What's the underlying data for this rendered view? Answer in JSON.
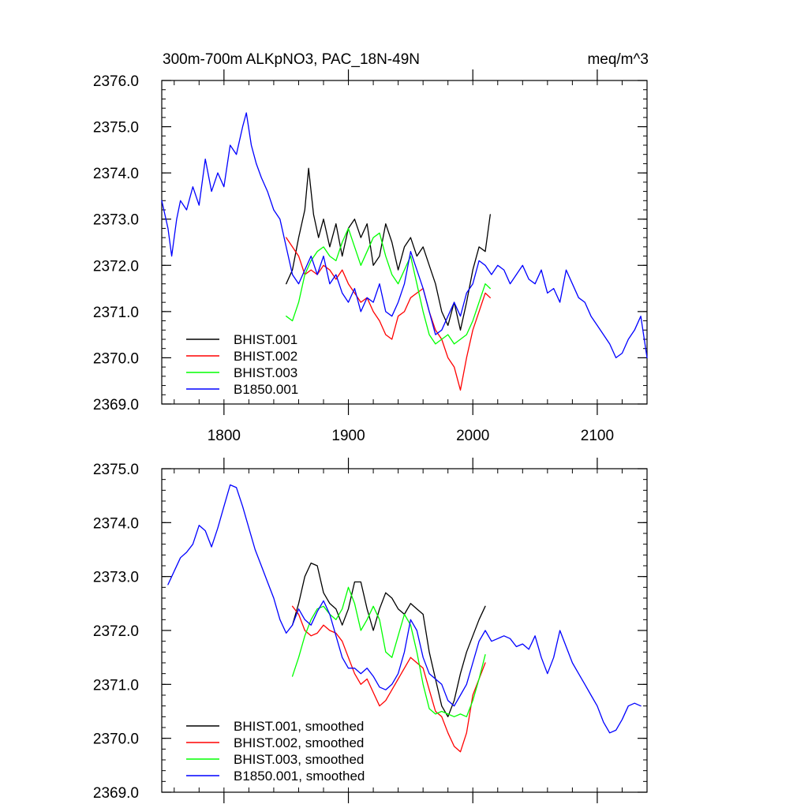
{
  "chart_data": [
    {
      "type": "line",
      "title_left": "300m-700m ALKpNO3, PAC_18N-49N",
      "title_right": "meq/m^3",
      "xlim": [
        1750,
        2140
      ],
      "ylim": [
        2369.0,
        2376.0
      ],
      "xticks": [
        1800,
        1900,
        2000,
        2100
      ],
      "xticklabels": [
        "1800",
        "1900",
        "2000",
        "2100"
      ],
      "yticks": [
        2369.0,
        2370.0,
        2371.0,
        2372.0,
        2373.0,
        2374.0,
        2375.0,
        2376.0
      ],
      "yticklabels": [
        "2369.0",
        "2370.0",
        "2371.0",
        "2372.0",
        "2373.0",
        "2374.0",
        "2375.0",
        "2376.0"
      ],
      "legend_position": "bottom-left",
      "series": [
        {
          "name": "BHIST.001",
          "color": "#000000",
          "x": [
            1850,
            1855,
            1860,
            1865,
            1868,
            1872,
            1876,
            1880,
            1885,
            1890,
            1895,
            1900,
            1905,
            1910,
            1915,
            1920,
            1925,
            1930,
            1935,
            1940,
            1945,
            1950,
            1955,
            1960,
            1965,
            1970,
            1975,
            1980,
            1985,
            1990,
            1995,
            2000,
            2005,
            2010,
            2014
          ],
          "y": [
            2371.6,
            2371.9,
            2372.6,
            2373.2,
            2374.1,
            2373.1,
            2372.6,
            2373.0,
            2372.4,
            2372.9,
            2372.2,
            2372.8,
            2373.0,
            2372.6,
            2372.9,
            2372.0,
            2372.2,
            2372.9,
            2372.5,
            2371.9,
            2372.4,
            2372.6,
            2372.2,
            2372.4,
            2372.0,
            2371.6,
            2371.0,
            2370.7,
            2371.2,
            2370.6,
            2371.2,
            2371.9,
            2372.4,
            2372.3,
            2373.1
          ]
        },
        {
          "name": "BHIST.002",
          "color": "#ff0000",
          "x": [
            1850,
            1855,
            1860,
            1865,
            1870,
            1875,
            1880,
            1885,
            1890,
            1895,
            1900,
            1905,
            1910,
            1915,
            1920,
            1925,
            1930,
            1935,
            1940,
            1945,
            1950,
            1955,
            1960,
            1965,
            1970,
            1975,
            1980,
            1985,
            1990,
            1995,
            2000,
            2005,
            2010,
            2014
          ],
          "y": [
            2372.6,
            2372.4,
            2372.2,
            2371.8,
            2371.9,
            2371.8,
            2372.0,
            2371.9,
            2371.7,
            2371.9,
            2371.6,
            2371.4,
            2371.2,
            2371.3,
            2371.0,
            2370.8,
            2370.5,
            2370.4,
            2370.9,
            2371.0,
            2371.3,
            2371.4,
            2371.5,
            2371.0,
            2370.6,
            2370.4,
            2370.0,
            2369.8,
            2369.3,
            2370.0,
            2370.6,
            2371.0,
            2371.4,
            2371.3
          ]
        },
        {
          "name": "BHIST.003",
          "color": "#00ff00",
          "x": [
            1850,
            1855,
            1860,
            1865,
            1870,
            1875,
            1880,
            1885,
            1890,
            1895,
            1900,
            1905,
            1910,
            1915,
            1920,
            1925,
            1930,
            1935,
            1940,
            1945,
            1950,
            1955,
            1960,
            1965,
            1970,
            1975,
            1980,
            1985,
            1990,
            1995,
            2000,
            2005,
            2010,
            2014
          ],
          "y": [
            2370.9,
            2370.8,
            2371.2,
            2371.8,
            2372.1,
            2372.3,
            2372.4,
            2372.2,
            2372.1,
            2372.5,
            2372.8,
            2372.4,
            2372.0,
            2372.3,
            2372.6,
            2372.7,
            2372.2,
            2371.8,
            2371.6,
            2371.9,
            2372.2,
            2371.6,
            2371.0,
            2370.5,
            2370.3,
            2370.4,
            2370.5,
            2370.3,
            2370.4,
            2370.5,
            2370.8,
            2371.2,
            2371.6,
            2371.5
          ]
        },
        {
          "name": "B1850.001",
          "color": "#0000ff",
          "x": [
            1750,
            1755,
            1758,
            1762,
            1765,
            1770,
            1775,
            1780,
            1785,
            1790,
            1795,
            1800,
            1805,
            1810,
            1815,
            1818,
            1822,
            1826,
            1830,
            1835,
            1840,
            1845,
            1850,
            1855,
            1860,
            1865,
            1870,
            1875,
            1880,
            1885,
            1890,
            1895,
            1900,
            1905,
            1910,
            1915,
            1920,
            1925,
            1930,
            1935,
            1940,
            1945,
            1950,
            1955,
            1960,
            1965,
            1970,
            1975,
            1980,
            1985,
            1990,
            1995,
            2000,
            2005,
            2010,
            2015,
            2020,
            2025,
            2030,
            2035,
            2040,
            2045,
            2050,
            2055,
            2060,
            2065,
            2070,
            2075,
            2080,
            2085,
            2090,
            2095,
            2100,
            2105,
            2110,
            2115,
            2120,
            2125,
            2130,
            2135,
            2140
          ],
          "y": [
            2373.4,
            2372.8,
            2372.2,
            2373.0,
            2373.4,
            2373.2,
            2373.7,
            2373.3,
            2374.3,
            2373.6,
            2374.0,
            2373.7,
            2374.6,
            2374.4,
            2375.0,
            2375.3,
            2374.6,
            2374.2,
            2373.9,
            2373.6,
            2373.2,
            2373.0,
            2372.4,
            2371.8,
            2371.6,
            2371.9,
            2372.2,
            2371.8,
            2372.2,
            2371.6,
            2371.8,
            2371.4,
            2371.2,
            2371.5,
            2371.0,
            2371.3,
            2371.2,
            2371.6,
            2371.0,
            2370.9,
            2371.2,
            2371.6,
            2372.3,
            2371.9,
            2371.5,
            2371.0,
            2370.5,
            2370.6,
            2370.9,
            2371.2,
            2370.9,
            2371.4,
            2371.6,
            2372.1,
            2372.0,
            2371.8,
            2372.0,
            2371.9,
            2371.6,
            2371.8,
            2372.0,
            2371.7,
            2371.6,
            2371.9,
            2371.4,
            2371.5,
            2371.2,
            2371.9,
            2371.6,
            2371.3,
            2371.2,
            2370.9,
            2370.7,
            2370.5,
            2370.3,
            2370.0,
            2370.1,
            2370.4,
            2370.6,
            2370.9,
            2370.0
          ]
        }
      ]
    },
    {
      "type": "line",
      "xlim": [
        1750,
        2140
      ],
      "ylim": [
        2369.0,
        2375.0
      ],
      "xticks": [
        1800,
        1900,
        2000,
        2100
      ],
      "yticks": [
        2369.0,
        2370.0,
        2371.0,
        2372.0,
        2373.0,
        2374.0,
        2375.0
      ],
      "yticklabels": [
        "2369.0",
        "2370.0",
        "2371.0",
        "2372.0",
        "2373.0",
        "2374.0",
        "2375.0"
      ],
      "legend_position": "bottom-left",
      "series": [
        {
          "name": "BHIST.001, smoothed",
          "color": "#000000",
          "x": [
            1855,
            1860,
            1865,
            1870,
            1875,
            1880,
            1885,
            1890,
            1895,
            1900,
            1905,
            1910,
            1915,
            1920,
            1925,
            1930,
            1935,
            1940,
            1945,
            1950,
            1955,
            1960,
            1965,
            1970,
            1975,
            1980,
            1985,
            1990,
            1995,
            2000,
            2005,
            2010
          ],
          "y": [
            2372.1,
            2372.5,
            2373.0,
            2373.25,
            2373.2,
            2372.7,
            2372.5,
            2372.4,
            2372.1,
            2372.4,
            2372.9,
            2372.9,
            2372.4,
            2372.0,
            2372.4,
            2372.7,
            2372.6,
            2372.4,
            2372.3,
            2372.5,
            2372.4,
            2372.3,
            2371.6,
            2371.1,
            2370.6,
            2370.4,
            2370.7,
            2371.2,
            2371.6,
            2371.9,
            2372.2,
            2372.45
          ]
        },
        {
          "name": "BHIST.002, smoothed",
          "color": "#ff0000",
          "x": [
            1855,
            1860,
            1865,
            1870,
            1875,
            1880,
            1885,
            1890,
            1895,
            1900,
            1905,
            1910,
            1915,
            1920,
            1925,
            1930,
            1935,
            1940,
            1945,
            1950,
            1955,
            1960,
            1965,
            1970,
            1975,
            1980,
            1985,
            1990,
            1995,
            2000,
            2005,
            2010
          ],
          "y": [
            2372.45,
            2372.3,
            2372.0,
            2371.9,
            2371.95,
            2372.1,
            2372.0,
            2371.95,
            2371.8,
            2371.5,
            2371.2,
            2371.0,
            2371.1,
            2370.85,
            2370.6,
            2370.7,
            2370.9,
            2371.1,
            2371.3,
            2371.5,
            2371.4,
            2371.3,
            2370.9,
            2370.5,
            2370.4,
            2370.1,
            2369.85,
            2369.75,
            2370.1,
            2370.8,
            2371.1,
            2371.4
          ]
        },
        {
          "name": "BHIST.003, smoothed",
          "color": "#00ff00",
          "x": [
            1855,
            1860,
            1865,
            1870,
            1875,
            1880,
            1885,
            1890,
            1895,
            1900,
            1905,
            1910,
            1915,
            1920,
            1925,
            1930,
            1935,
            1940,
            1945,
            1950,
            1955,
            1960,
            1965,
            1970,
            1975,
            1980,
            1985,
            1990,
            1995,
            2000,
            2005,
            2010
          ],
          "y": [
            2371.15,
            2371.5,
            2371.9,
            2372.2,
            2372.4,
            2372.45,
            2372.3,
            2372.2,
            2372.4,
            2372.8,
            2372.5,
            2372.0,
            2372.2,
            2372.45,
            2372.2,
            2371.6,
            2371.5,
            2371.9,
            2372.3,
            2372.1,
            2371.6,
            2371.0,
            2370.55,
            2370.45,
            2370.5,
            2370.45,
            2370.4,
            2370.45,
            2370.4,
            2370.7,
            2371.1,
            2371.55
          ]
        },
        {
          "name": "B1850.001, smoothed",
          "color": "#0000ff",
          "x": [
            1755,
            1760,
            1765,
            1770,
            1775,
            1780,
            1785,
            1790,
            1795,
            1800,
            1805,
            1810,
            1815,
            1820,
            1825,
            1830,
            1835,
            1840,
            1845,
            1850,
            1855,
            1860,
            1865,
            1870,
            1875,
            1880,
            1885,
            1890,
            1895,
            1900,
            1905,
            1910,
            1915,
            1920,
            1925,
            1930,
            1935,
            1940,
            1945,
            1950,
            1955,
            1960,
            1965,
            1970,
            1975,
            1980,
            1985,
            1990,
            1995,
            2000,
            2005,
            2010,
            2015,
            2020,
            2025,
            2030,
            2035,
            2040,
            2045,
            2050,
            2055,
            2060,
            2065,
            2070,
            2075,
            2080,
            2085,
            2090,
            2095,
            2100,
            2105,
            2110,
            2115,
            2120,
            2125,
            2130,
            2135
          ],
          "y": [
            2372.85,
            2373.1,
            2373.35,
            2373.45,
            2373.6,
            2373.95,
            2373.85,
            2373.55,
            2373.9,
            2374.3,
            2374.7,
            2374.65,
            2374.3,
            2373.9,
            2373.5,
            2373.2,
            2372.9,
            2372.6,
            2372.2,
            2371.95,
            2372.1,
            2372.4,
            2372.2,
            2372.1,
            2372.35,
            2372.55,
            2372.3,
            2371.9,
            2371.5,
            2371.3,
            2371.3,
            2371.2,
            2371.3,
            2371.15,
            2370.95,
            2370.9,
            2371.0,
            2371.2,
            2371.6,
            2372.2,
            2372.0,
            2371.5,
            2371.2,
            2371.1,
            2371.0,
            2370.7,
            2370.6,
            2370.8,
            2371.0,
            2371.4,
            2371.8,
            2372.0,
            2371.8,
            2371.85,
            2371.9,
            2371.85,
            2371.7,
            2371.75,
            2371.65,
            2371.9,
            2371.5,
            2371.2,
            2371.5,
            2372.0,
            2371.7,
            2371.4,
            2371.2,
            2371.0,
            2370.8,
            2370.6,
            2370.3,
            2370.1,
            2370.15,
            2370.35,
            2370.6,
            2370.65,
            2370.6
          ]
        }
      ]
    }
  ]
}
